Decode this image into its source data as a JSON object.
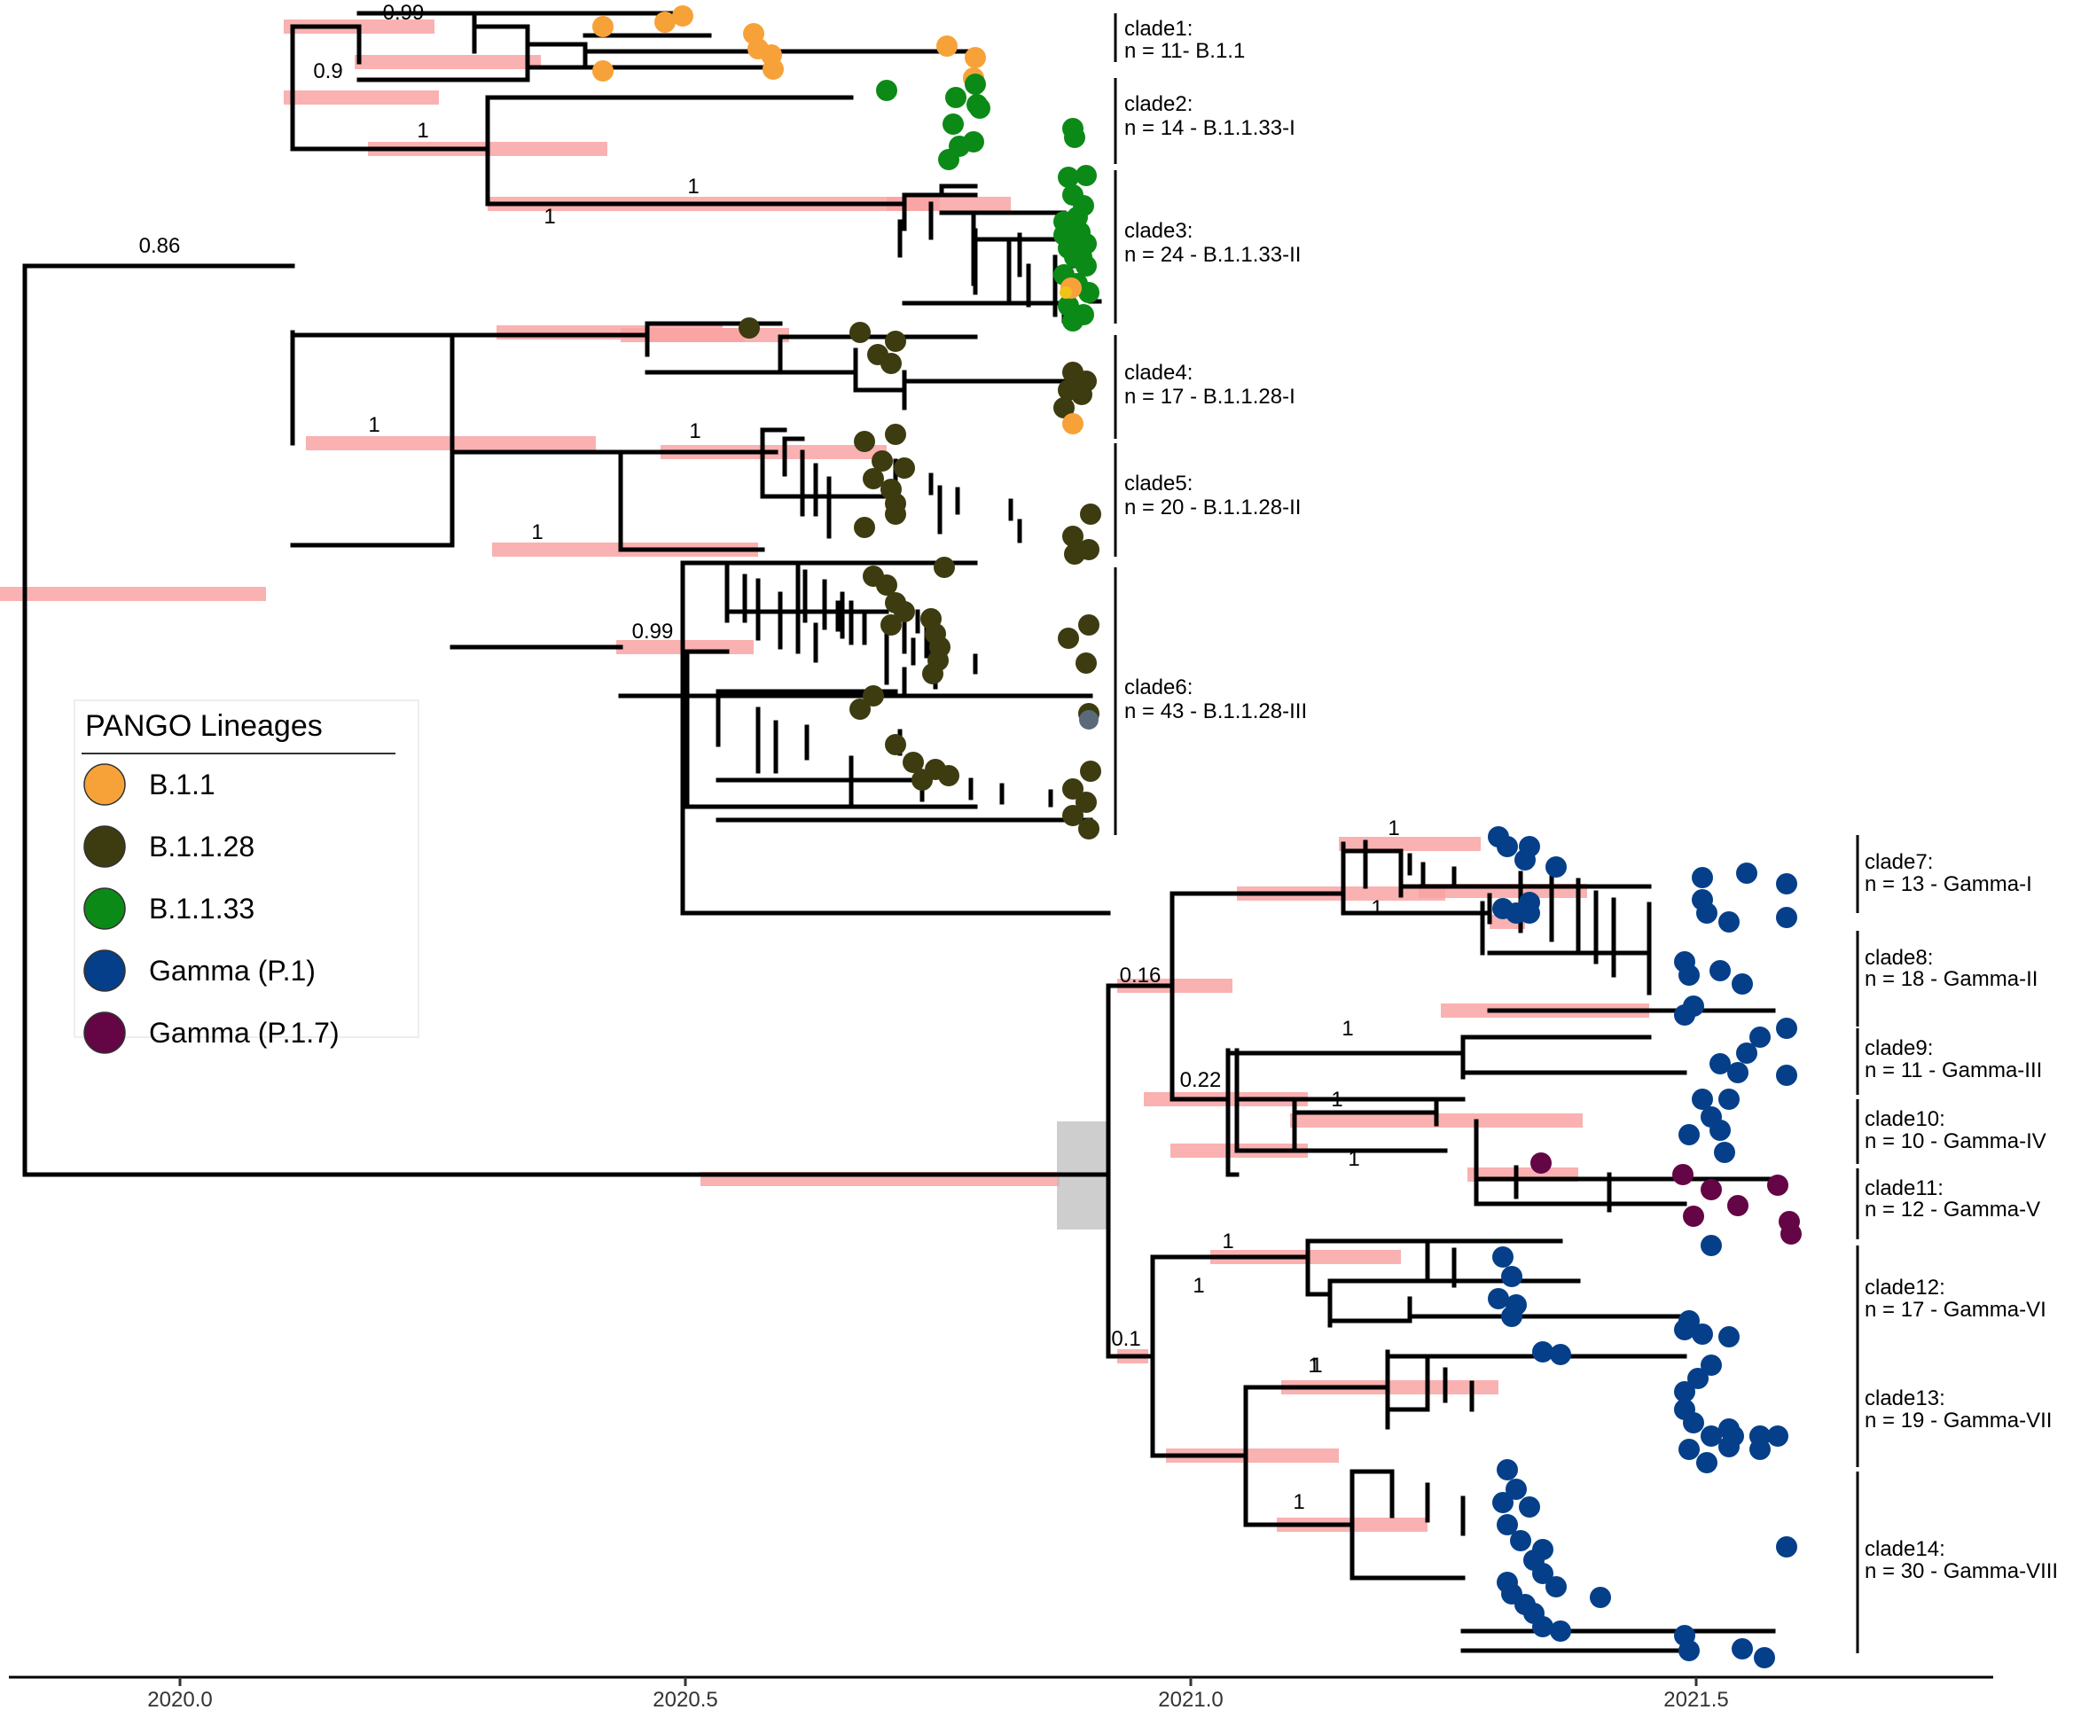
{
  "legend": {
    "title": "PANGO Lineages",
    "items": [
      {
        "label": "B.1.1",
        "color": "#f7a239"
      },
      {
        "label": "B.1.1.28",
        "color": "#3d3b10"
      },
      {
        "label": "B.1.1.33",
        "color": "#0b8a17"
      },
      {
        "label": "Gamma (P.1)",
        "color": "#053f89"
      },
      {
        "label": "Gamma (P.1.7)",
        "color": "#640545"
      }
    ]
  },
  "support": [
    "0.99",
    "0.9",
    "1",
    "0.86",
    "1",
    "1",
    "1",
    "1",
    "1",
    "0.99",
    "1",
    "1",
    "1",
    "0.16",
    "0.22",
    "1",
    "1",
    "1",
    "1",
    "0.1",
    "1",
    "1",
    "1"
  ],
  "clades": [
    {
      "name": "clade1:",
      "desc": "n = 11- B.1.1"
    },
    {
      "name": "clade2:",
      "desc": "n = 14 - B.1.1.33-I"
    },
    {
      "name": "clade3:",
      "desc": "n = 24 - B.1.1.33-II"
    },
    {
      "name": "clade4:",
      "desc": "n = 17 - B.1.1.28-I"
    },
    {
      "name": "clade5:",
      "desc": "n = 20 - B.1.1.28-II"
    },
    {
      "name": "clade6:",
      "desc": "n = 43 - B.1.1.28-III"
    },
    {
      "name": "clade7:",
      "desc": "n = 13 - Gamma-I"
    },
    {
      "name": "clade8:",
      "desc": "n = 18 - Gamma-II"
    },
    {
      "name": "clade9:",
      "desc": "n = 11 - Gamma-III"
    },
    {
      "name": "clade10:",
      "desc": "n = 10 - Gamma-IV"
    },
    {
      "name": "clade11:",
      "desc": "n = 12 - Gamma-V"
    },
    {
      "name": "clade12:",
      "desc": "n = 17 - Gamma-VI"
    },
    {
      "name": "clade13:",
      "desc": "n = 19 - Gamma-VII"
    },
    {
      "name": "clade14:",
      "desc": "n = 30 - Gamma-VIII"
    }
  ],
  "axis": {
    "ticks": [
      "2020.0",
      "2020.5",
      "2021.0",
      "2021.5"
    ]
  }
}
